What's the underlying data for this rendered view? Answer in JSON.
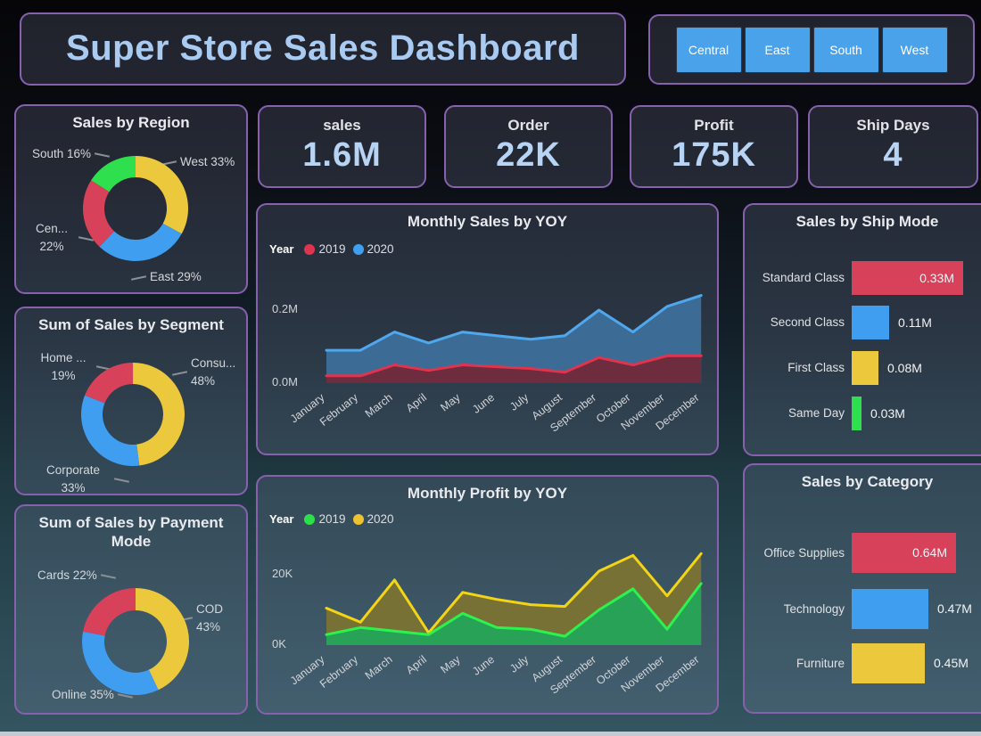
{
  "page": {
    "title": "Super Store Sales Dashboard"
  },
  "slicer": {
    "buttons": [
      "Central",
      "East",
      "South",
      "West"
    ]
  },
  "kpis": [
    {
      "label": "sales",
      "value": "1.6M"
    },
    {
      "label": "Order",
      "value": "22K"
    },
    {
      "label": "Profit",
      "value": "175K"
    },
    {
      "label": "Ship Days",
      "value": "4"
    }
  ],
  "theme": {
    "panel_border": "#8760ae",
    "button_blue": "#4aa2ea",
    "title_text": "#a9cbf2",
    "kpi_value_text": "#b7d4f4",
    "red": "#d8415a",
    "blue": "#3f9ef0",
    "yellow": "#ecc83c",
    "green": "#2ee04e"
  },
  "chart_data": [
    {
      "id": "sales-by-region",
      "type": "pie",
      "title": "Sales by Region",
      "slices": [
        {
          "label": "West",
          "pct": 33,
          "color": "#ecc83c"
        },
        {
          "label": "East",
          "pct": 29,
          "color": "#3f9ef0"
        },
        {
          "label": "Central",
          "pct": 22,
          "color": "#d8415a"
        },
        {
          "label": "South",
          "pct": 16,
          "color": "#2ee04e"
        }
      ],
      "callouts": [
        {
          "line1": "South 16%"
        },
        {
          "line1": "West 33%"
        },
        {
          "line1": "Cen...",
          "line2": "22%"
        },
        {
          "line1": "East 29%"
        }
      ]
    },
    {
      "id": "monthly-sales-yoy",
      "type": "area",
      "title": "Monthly Sales by YOY",
      "legend_title": "Year",
      "x": [
        "January",
        "February",
        "March",
        "April",
        "May",
        "June",
        "July",
        "August",
        "September",
        "October",
        "November",
        "December"
      ],
      "series": [
        {
          "name": "2020",
          "color": "#4fa8ee",
          "fill": "#3c6c95",
          "values": [
            0.09,
            0.09,
            0.14,
            0.11,
            0.14,
            0.13,
            0.12,
            0.13,
            0.2,
            0.14,
            0.21,
            0.24
          ]
        },
        {
          "name": "2019",
          "color": "#e0344e",
          "fill": "#6d2d3f",
          "values": [
            0.02,
            0.02,
            0.05,
            0.035,
            0.05,
            0.045,
            0.04,
            0.03,
            0.07,
            0.05,
            0.075,
            0.075
          ]
        }
      ],
      "legend": [
        {
          "name": "2019",
          "color": "#e0344e"
        },
        {
          "name": "2020",
          "color": "#3fa0f0"
        }
      ],
      "ylim": [
        0,
        0.29
      ],
      "yticks": [
        {
          "v": 0,
          "label": "0.0M"
        },
        {
          "v": 0.2,
          "label": "0.2M"
        }
      ]
    },
    {
      "id": "sales-by-ship-mode",
      "type": "bar",
      "title": "Sales by Ship Mode",
      "xmax": 0.35,
      "bars": [
        {
          "label": "Standard Class",
          "value": 0.33,
          "value_label": "0.33M",
          "color": "#d8415a",
          "label_inside": true
        },
        {
          "label": "Second Class",
          "value": 0.11,
          "value_label": "0.11M",
          "color": "#3f9ef0",
          "label_inside": false
        },
        {
          "label": "First Class",
          "value": 0.08,
          "value_label": "0.08M",
          "color": "#ecc83c",
          "label_inside": false
        },
        {
          "label": "Same Day",
          "value": 0.03,
          "value_label": "0.03M",
          "color": "#2ee04e",
          "label_inside": false
        }
      ]
    },
    {
      "id": "sales-by-segment",
      "type": "pie",
      "title": "Sum of Sales by Segment",
      "slices": [
        {
          "label": "Consumer",
          "pct": 48,
          "color": "#ecc83c"
        },
        {
          "label": "Corporate",
          "pct": 33,
          "color": "#3f9ef0"
        },
        {
          "label": "Home Office",
          "pct": 19,
          "color": "#d8415a"
        }
      ],
      "callouts": [
        {
          "line1": "Home ...",
          "line2": "19%"
        },
        {
          "line1": "Consu...",
          "line2": "48%"
        },
        {
          "line1": "Corporate",
          "line2": "33%"
        }
      ]
    },
    {
      "id": "monthly-profit-yoy",
      "type": "area",
      "title": "Monthly Profit by YOY",
      "legend_title": "Year",
      "x": [
        "January",
        "February",
        "March",
        "April",
        "May",
        "June",
        "July",
        "August",
        "September",
        "October",
        "November",
        "December"
      ],
      "series": [
        {
          "name": "2020",
          "color": "#f3d516",
          "fill": "#787136",
          "values": [
            10.5,
            6.5,
            18.5,
            3.5,
            15,
            13,
            11.5,
            11,
            21,
            25.5,
            14,
            26
          ]
        },
        {
          "name": "2019",
          "color": "#2df24e",
          "fill": "#27a257",
          "values": [
            3,
            5,
            4,
            3,
            9,
            5,
            4.5,
            2.5,
            10,
            16,
            4.5,
            17.5
          ]
        }
      ],
      "legend": [
        {
          "name": "2019",
          "color": "#2ce04a"
        },
        {
          "name": "2020",
          "color": "#eec32d"
        }
      ],
      "ylim": [
        0,
        29
      ],
      "yticks": [
        {
          "v": 0,
          "label": "0K"
        },
        {
          "v": 20,
          "label": "20K"
        }
      ]
    },
    {
      "id": "sales-by-payment-mode",
      "type": "pie",
      "title": "Sum of Sales by Payment Mode",
      "slices": [
        {
          "label": "COD",
          "pct": 43,
          "color": "#ecc83c"
        },
        {
          "label": "Online",
          "pct": 35,
          "color": "#3f9ef0"
        },
        {
          "label": "Cards",
          "pct": 22,
          "color": "#d8415a"
        }
      ],
      "callouts": [
        {
          "line1": "Cards 22%"
        },
        {
          "line1": "COD",
          "line2": "43%"
        },
        {
          "line1": "Online 35%"
        }
      ]
    },
    {
      "id": "sales-by-category",
      "type": "bar",
      "title": "Sales by Category",
      "xmax": 0.7,
      "bars": [
        {
          "label": "Office Supplies",
          "value": 0.64,
          "value_label": "0.64M",
          "color": "#d8415a",
          "label_inside": true
        },
        {
          "label": "Technology",
          "value": 0.47,
          "value_label": "0.47M",
          "color": "#3f9ef0",
          "label_inside": false
        },
        {
          "label": "Furniture",
          "value": 0.45,
          "value_label": "0.45M",
          "color": "#ecc83c",
          "label_inside": false
        }
      ]
    }
  ]
}
